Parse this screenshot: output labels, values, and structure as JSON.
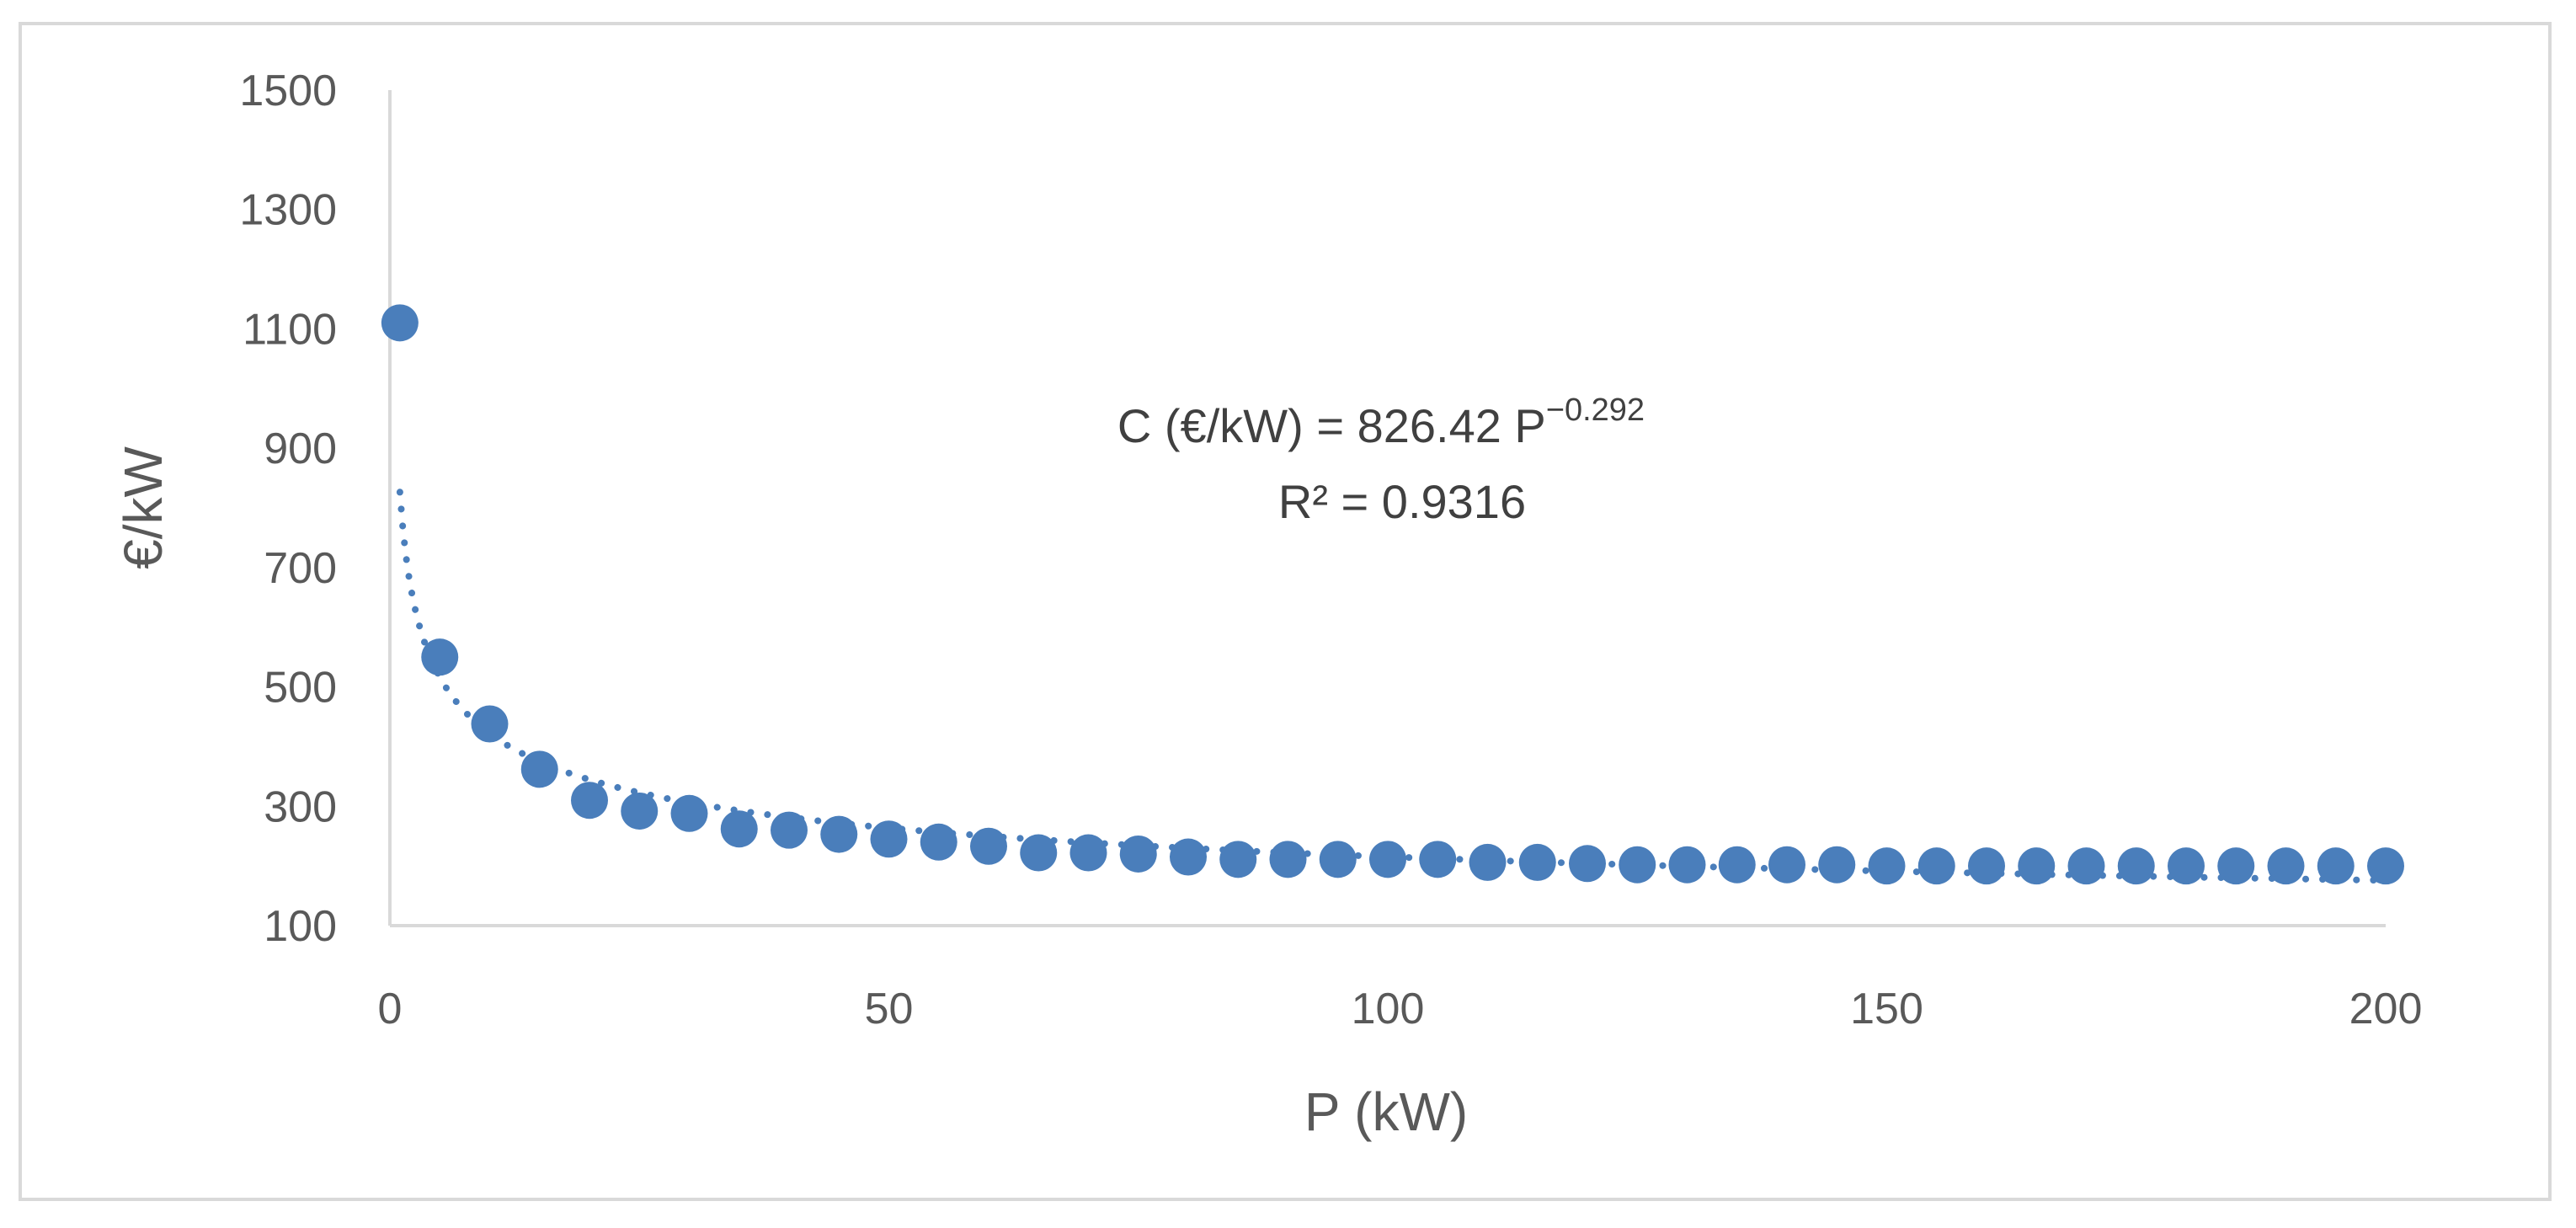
{
  "chart_data": {
    "type": "scatter",
    "xlabel": "P (kW)",
    "ylabel": "€/kW",
    "xlim": [
      0,
      200
    ],
    "ylim": [
      100,
      1500
    ],
    "xticks": [
      "0",
      "50",
      "100",
      "150",
      "200"
    ],
    "yticks": [
      "100",
      "300",
      "500",
      "700",
      "900",
      "1100",
      "1300",
      "1500"
    ],
    "grid": false,
    "legend": "none",
    "marker_color": "#4a7ebb",
    "series": [
      {
        "x": [
          1,
          5,
          10,
          15,
          20,
          25,
          30,
          35,
          40,
          45,
          50,
          55,
          60,
          65,
          70,
          75,
          80,
          85,
          90,
          95,
          100,
          105,
          110,
          115,
          120,
          125,
          130,
          135,
          140,
          145,
          150,
          155,
          160,
          165,
          170,
          175,
          180,
          185,
          190,
          195,
          200
        ],
        "y": [
          1110,
          550,
          438,
          362,
          310,
          292,
          288,
          262,
          260,
          253,
          245,
          240,
          233,
          222,
          222,
          220,
          215,
          211,
          211,
          211,
          211,
          211,
          206,
          206,
          204,
          202,
          202,
          202,
          202,
          202,
          200,
          200,
          200,
          200,
          200,
          200,
          200,
          200,
          200,
          200,
          200
        ]
      }
    ],
    "trendline": {
      "type": "power",
      "coefficient": 826.42,
      "exponent": -0.292,
      "style": "dotted",
      "equation_prefix": "C (€/kW) = 826.42 P",
      "equation_exponent": "−0.292",
      "r_squared_label": "R² = 0.9316"
    }
  }
}
